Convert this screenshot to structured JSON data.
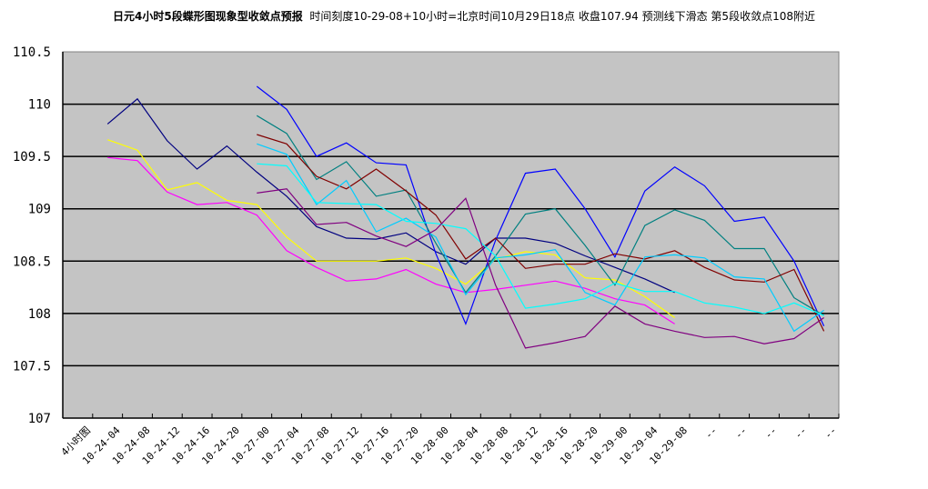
{
  "chart_data": {
    "type": "line",
    "title": "日元4小时5段蝶形图现象型收敛点预报",
    "subtitle": "时间刻度10-29-08+10小时=北京时间10月29日18点 收盘107.94 预测线下滑态 第5段收敛点108附近",
    "xlabel": "",
    "ylabel": "",
    "ylim": [
      107,
      110.5
    ],
    "yticks": [
      "110.5",
      "110",
      "109.5",
      "109",
      "108.5",
      "108",
      "107.5",
      "107"
    ],
    "grid": true,
    "legend": "none",
    "categories": [
      "4小时图",
      "10-24-04",
      "10-24-08",
      "10-24-12",
      "10-24-16",
      "10-24-20",
      "10-27-00",
      "10-27-04",
      "10-27-08",
      "10-27-12",
      "10-27-16",
      "10-27-20",
      "10-28-00",
      "10-28-04",
      "10-28-08",
      "10-28-12",
      "10-28-16",
      "10-28-20",
      "10-29-00",
      "10-29-04",
      "10-29-08",
      "--",
      "--",
      "--",
      "--",
      "--"
    ],
    "series": [
      {
        "name": "navy",
        "color": "#000080",
        "values": [
          null,
          109.81,
          110.05,
          109.65,
          109.38,
          109.6,
          109.35,
          109.12,
          108.83,
          108.72,
          108.71,
          108.77,
          108.59,
          108.47,
          108.72,
          108.72,
          108.67,
          108.55,
          108.44,
          108.33,
          108.2,
          null,
          null,
          null,
          null,
          null
        ]
      },
      {
        "name": "yellow",
        "color": "#FFFF00",
        "values": [
          null,
          109.66,
          109.56,
          109.18,
          109.25,
          109.08,
          109.04,
          108.73,
          108.5,
          108.5,
          108.5,
          108.53,
          108.43,
          108.28,
          108.52,
          108.59,
          108.56,
          108.34,
          108.32,
          108.16,
          107.96,
          null,
          null,
          null,
          null,
          null
        ]
      },
      {
        "name": "magenta",
        "color": "#FF00FF",
        "values": [
          null,
          109.49,
          109.46,
          109.16,
          109.04,
          109.06,
          108.94,
          108.6,
          108.44,
          108.31,
          108.33,
          108.42,
          108.28,
          108.2,
          108.23,
          108.27,
          108.31,
          108.24,
          108.14,
          108.08,
          107.9,
          null,
          null,
          null,
          null,
          null
        ]
      },
      {
        "name": "blue",
        "color": "#0000FF",
        "values": [
          null,
          null,
          null,
          null,
          null,
          null,
          110.17,
          109.95,
          109.5,
          109.63,
          109.44,
          109.42,
          108.57,
          107.9,
          108.7,
          109.34,
          109.38,
          109.0,
          108.54,
          109.17,
          109.4,
          109.22,
          108.88,
          108.92,
          108.5,
          107.88
        ]
      },
      {
        "name": "teal",
        "color": "#008080",
        "values": [
          null,
          null,
          null,
          null,
          null,
          null,
          109.89,
          109.72,
          109.28,
          109.45,
          109.12,
          109.18,
          108.67,
          108.2,
          108.55,
          108.95,
          109.0,
          108.65,
          108.27,
          108.84,
          108.99,
          108.89,
          108.62,
          108.62,
          108.15,
          107.98
        ]
      },
      {
        "name": "maroon",
        "color": "#800000",
        "values": [
          null,
          null,
          null,
          null,
          null,
          null,
          109.71,
          109.62,
          109.31,
          109.19,
          109.38,
          109.17,
          108.94,
          108.52,
          108.72,
          108.43,
          108.47,
          108.47,
          108.57,
          108.52,
          108.6,
          108.44,
          108.32,
          108.3,
          108.42,
          107.83
        ]
      },
      {
        "name": "deepskyblue",
        "color": "#00CCFF",
        "values": [
          null,
          null,
          null,
          null,
          null,
          null,
          109.62,
          109.52,
          109.04,
          109.27,
          108.78,
          108.91,
          108.73,
          108.18,
          108.53,
          108.56,
          108.61,
          108.2,
          108.08,
          108.54,
          108.56,
          108.53,
          108.35,
          108.33,
          107.83,
          108.03
        ]
      },
      {
        "name": "cyan",
        "color": "#00FFFF",
        "values": [
          null,
          null,
          null,
          null,
          null,
          null,
          109.43,
          109.41,
          109.06,
          109.05,
          109.04,
          108.88,
          108.86,
          108.81,
          108.55,
          108.05,
          108.09,
          108.14,
          108.29,
          108.21,
          108.21,
          108.1,
          108.06,
          108.0,
          108.1,
          107.98
        ]
      },
      {
        "name": "purple",
        "color": "#800080",
        "values": [
          null,
          null,
          null,
          null,
          null,
          null,
          109.15,
          109.19,
          108.85,
          108.87,
          108.74,
          108.64,
          108.8,
          109.1,
          108.27,
          107.67,
          107.72,
          107.78,
          108.07,
          107.9,
          107.83,
          107.77,
          107.78,
          107.71,
          107.76,
          107.96
        ]
      }
    ]
  }
}
